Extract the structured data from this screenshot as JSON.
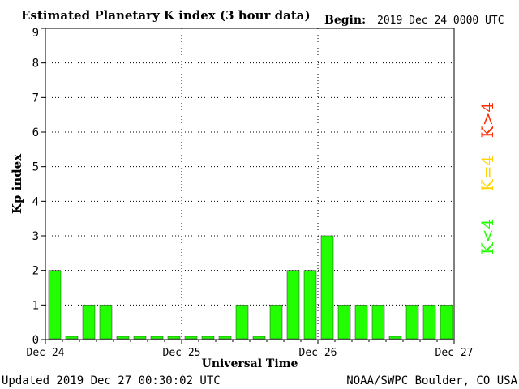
{
  "chart_data": {
    "type": "bar",
    "title": "Estimated Planetary K index (3 hour data)",
    "begin_label": "Begin:",
    "begin_value": "2019 Dec 24 0000 UTC",
    "xlabel": "Universal Time",
    "ylabel": "Kp index",
    "ylim": [
      0,
      9
    ],
    "yticks": [
      "0",
      "1",
      "2",
      "3",
      "4",
      "5",
      "6",
      "7",
      "8",
      "9"
    ],
    "xticks": [
      "Dec 24",
      "Dec 25",
      "Dec 26",
      "Dec 27"
    ],
    "bins_per_day": 8,
    "values": [
      2,
      0,
      1,
      1,
      0,
      0,
      0,
      0,
      0,
      0,
      0,
      1,
      0,
      1,
      2,
      2,
      3,
      1,
      1,
      1,
      0,
      1,
      1,
      1
    ],
    "grid": true,
    "bar_color": "#22ff00",
    "legend": [
      {
        "label": "K>4",
        "color": "#ff2a00"
      },
      {
        "label": "K=4",
        "color": "#ffd400"
      },
      {
        "label": "K<4",
        "color": "#22ff00"
      }
    ]
  },
  "footer": {
    "updated": "Updated 2019 Dec 27 00:30:02 UTC",
    "source": "NOAA/SWPC Boulder, CO USA"
  }
}
